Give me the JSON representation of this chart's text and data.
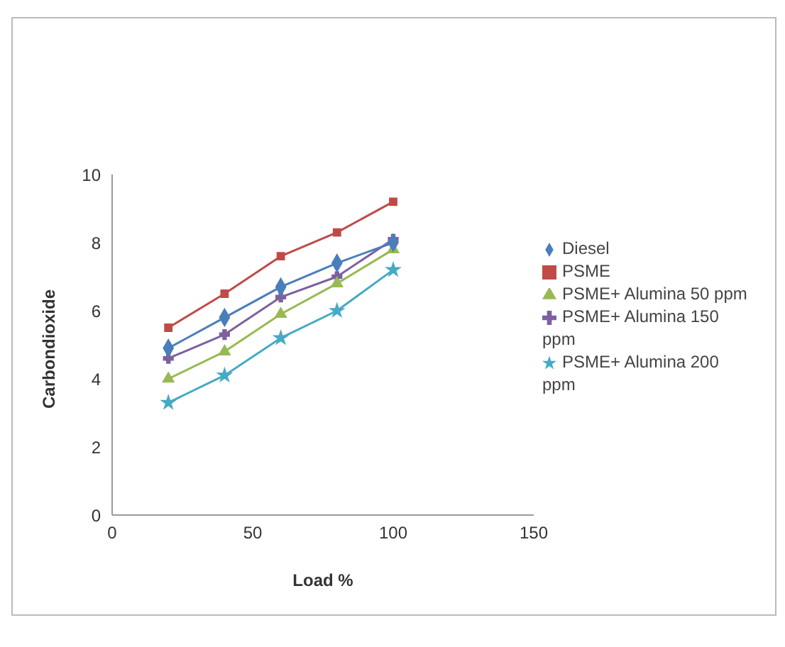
{
  "chart_data": {
    "type": "line",
    "xlabel": "Load  %",
    "ylabel": "Carbondioxide",
    "x": [
      20,
      40,
      60,
      80,
      100
    ],
    "series": [
      {
        "name": "Diesel",
        "color": "#4a7ebb",
        "marker": "diamond",
        "values": [
          4.9,
          5.8,
          6.7,
          7.4,
          8.0
        ]
      },
      {
        "name": "PSME",
        "color": "#be4b48",
        "marker": "square",
        "values": [
          5.5,
          6.5,
          7.6,
          8.3,
          9.2
        ]
      },
      {
        "name": "PSME+ Alumina 50 ppm",
        "color": "#98b954",
        "marker": "triangle",
        "values": [
          4.0,
          4.8,
          5.9,
          6.8,
          7.8
        ]
      },
      {
        "name": "PSME+ Alumina 150 ppm",
        "color": "#7d60a0",
        "marker": "cross",
        "values": [
          4.6,
          5.3,
          6.4,
          7.0,
          8.1
        ]
      },
      {
        "name": "PSME+ Alumina 200 ppm",
        "color": "#46aac5",
        "marker": "star",
        "values": [
          3.3,
          4.1,
          5.2,
          6.0,
          7.2
        ]
      }
    ],
    "xlim": [
      0,
      150
    ],
    "xticks": [
      0,
      50,
      100,
      150
    ],
    "ylim": [
      0,
      10
    ],
    "yticks": [
      0,
      2,
      4,
      6,
      8,
      10
    ],
    "grid": false,
    "legend": "right"
  }
}
